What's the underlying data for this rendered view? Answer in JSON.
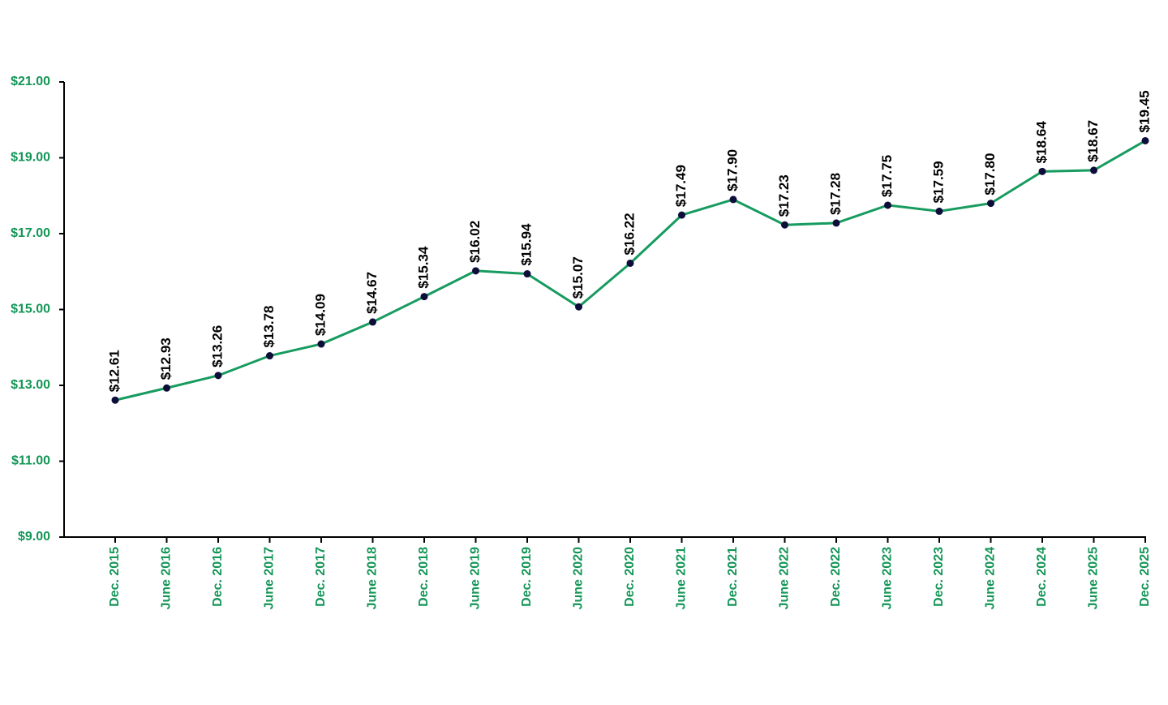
{
  "chart_data": {
    "type": "line",
    "categories": [
      "Dec. 2015",
      "June 2016",
      "Dec. 2016",
      "June 2017",
      "Dec. 2017",
      "June 2018",
      "Dec. 2018",
      "June 2019",
      "Dec. 2019",
      "June 2020",
      "Dec. 2020",
      "June 2021",
      "Dec. 2021",
      "June 2022",
      "Dec. 2022",
      "June 2023",
      "Dec. 2023",
      "June 2024",
      "Dec. 2024",
      "June 2025",
      "Dec. 2025"
    ],
    "series": [
      {
        "color": "#179b5f",
        "marker_color": "#0d0d3a",
        "values": [
          12.61,
          12.93,
          13.26,
          13.78,
          14.09,
          14.67,
          15.34,
          16.02,
          15.94,
          15.07,
          16.22,
          17.49,
          17.9,
          17.23,
          17.28,
          17.75,
          17.59,
          17.8,
          18.64,
          18.67,
          19.45
        ],
        "value_labels": [
          "$12.61",
          "$12.93",
          "$13.26",
          "$13.78",
          "$14.09",
          "$14.67",
          "$15.34",
          "$16.02",
          "$15.94",
          "$15.07",
          "$16.22",
          "$17.49",
          "$17.90",
          "$17.23",
          "$17.28",
          "$17.75",
          "$17.59",
          "$17.80",
          "$18.64",
          "$18.67",
          "$19.45"
        ]
      }
    ],
    "ylim": [
      9,
      21
    ],
    "yticks": [
      {
        "value": 9,
        "label": "$9.00"
      },
      {
        "value": 11,
        "label": "$11.00"
      },
      {
        "value": 13,
        "label": "$13.00"
      },
      {
        "value": 15,
        "label": "$15.00"
      },
      {
        "value": 17,
        "label": "$17.00"
      },
      {
        "value": 19,
        "label": "$19.00"
      },
      {
        "value": 21,
        "label": "$21.00"
      }
    ],
    "grid": false
  }
}
